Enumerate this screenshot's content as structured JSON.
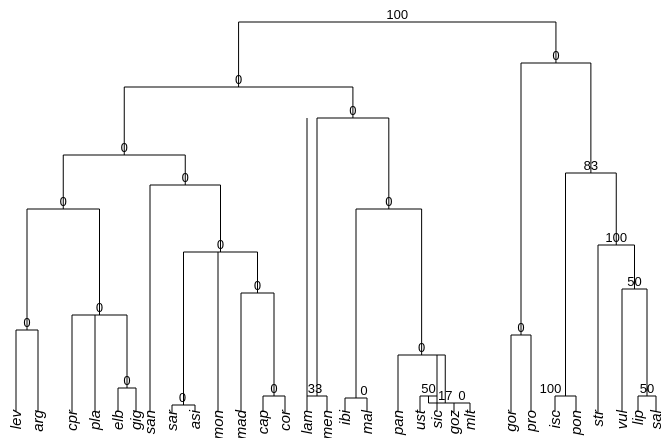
{
  "chart_data": {
    "type": "dendrogram",
    "leaves": [
      "lev",
      "arg",
      "cpr",
      "pla",
      "elb",
      "gig",
      "san",
      "sar",
      "asi",
      "mon",
      "mad",
      "cap",
      "cor",
      "lam",
      "men",
      "ibi",
      "mal",
      "pan",
      "ust",
      "sic",
      "goz",
      "mlt",
      "gor",
      "pro",
      "isc",
      "pon",
      "str",
      "vul",
      "lip",
      "sal"
    ],
    "clades": [
      {
        "id": "n1",
        "children": [
          "lev",
          "arg"
        ],
        "support": "0"
      },
      {
        "id": "n2",
        "children": [
          "elb",
          "gig"
        ],
        "support": "0"
      },
      {
        "id": "n3",
        "children": [
          "cpr",
          "pla",
          "n2"
        ],
        "support": "0"
      },
      {
        "id": "n4",
        "children": [
          "n1",
          "n3"
        ],
        "support": "0"
      },
      {
        "id": "n5",
        "children": [
          "sar",
          "asi"
        ],
        "support": "0"
      },
      {
        "id": "n6",
        "children": [
          "cap",
          "cor"
        ],
        "support": "0"
      },
      {
        "id": "n7",
        "children": [
          "mad",
          "n6"
        ],
        "support": "0"
      },
      {
        "id": "n8",
        "children": [
          "n5",
          "mon",
          "n7"
        ],
        "support": "0"
      },
      {
        "id": "n9",
        "children": [
          "san",
          "n8"
        ],
        "support": "0"
      },
      {
        "id": "n10",
        "children": [
          "n4",
          "n9"
        ],
        "support": "0"
      },
      {
        "id": "n11",
        "children": [
          "lam",
          "men"
        ],
        "support": "33"
      },
      {
        "id": "n12",
        "children": [
          "ibi",
          "mal"
        ],
        "support": "0"
      },
      {
        "id": "n13",
        "children": [
          "ust",
          "sic"
        ],
        "support": "50"
      },
      {
        "id": "n14",
        "children": [
          "goz",
          "mlt"
        ],
        "support": "0"
      },
      {
        "id": "n15",
        "children": [
          "n13",
          "n14"
        ],
        "support": "17"
      },
      {
        "id": "n16",
        "children": [
          "pan",
          "n15"
        ],
        "support": "0"
      },
      {
        "id": "n17",
        "children": [
          "n12",
          "n16"
        ],
        "support": "0"
      },
      {
        "id": "n18",
        "children": [
          "n11",
          "n17"
        ],
        "support": "0"
      },
      {
        "id": "n19",
        "children": [
          "n10",
          "n18"
        ],
        "support": "0"
      },
      {
        "id": "n20",
        "children": [
          "gor",
          "pro"
        ],
        "support": "0"
      },
      {
        "id": "n21",
        "children": [
          "isc",
          "pon"
        ],
        "support": "100"
      },
      {
        "id": "n22",
        "children": [
          "lip",
          "sal"
        ],
        "support": "50"
      },
      {
        "id": "n23",
        "children": [
          "vul",
          "n22"
        ],
        "support": "50"
      },
      {
        "id": "n24",
        "children": [
          "str",
          "n23"
        ],
        "support": "100"
      },
      {
        "id": "n25",
        "children": [
          "n21",
          "n24"
        ],
        "support": "83"
      },
      {
        "id": "n26",
        "children": [
          "n20",
          "n25"
        ],
        "support": "0"
      },
      {
        "id": "root",
        "children": [
          "n19",
          "n26"
        ],
        "support": "100"
      }
    ]
  }
}
